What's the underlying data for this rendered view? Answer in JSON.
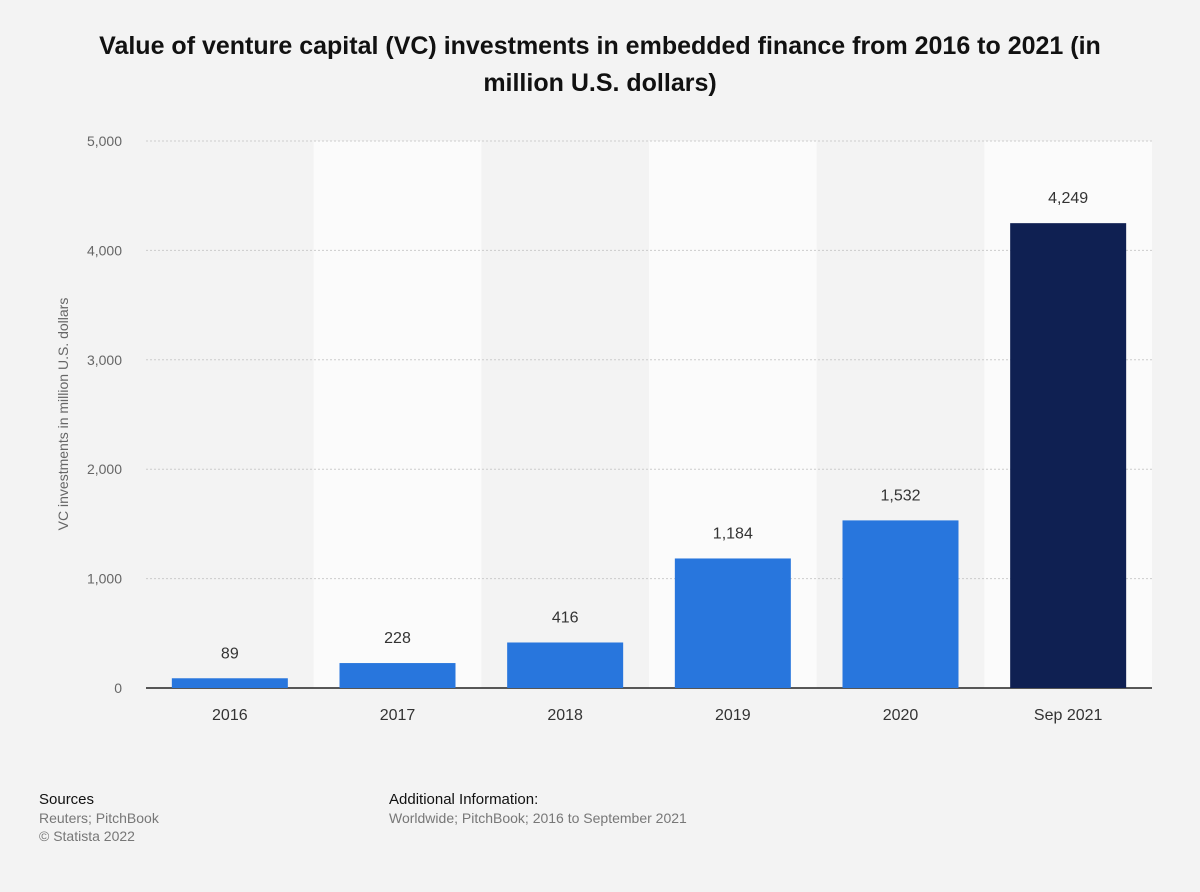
{
  "chart_data": {
    "type": "bar",
    "title": "Value of venture capital (VC) investments in embedded finance from 2016 to 2021 (in million U.S. dollars)",
    "ylabel": "VC investments in million U.S. dollars",
    "xlabel": "",
    "categories": [
      "2016",
      "2017",
      "2018",
      "2019",
      "2020",
      "Sep 2021"
    ],
    "values": [
      89,
      228,
      416,
      1184,
      1532,
      4249
    ],
    "value_labels": [
      "89",
      "228",
      "416",
      "1,184",
      "1,532",
      "4,249"
    ],
    "ylim": [
      0,
      5000
    ],
    "yticks": [
      0,
      1000,
      2000,
      3000,
      4000,
      5000
    ],
    "ytick_labels": [
      "0",
      "1,000",
      "2,000",
      "3,000",
      "4,000",
      "5,000"
    ],
    "grid": true,
    "colors": {
      "bar": "#2876dd",
      "highlight_bar": "#0f2052",
      "grid": "#cccccc",
      "stripe": "#fbfbfb",
      "background": "#f3f3f3"
    },
    "highlight_index": 5
  },
  "footer": {
    "sources_heading": "Sources",
    "sources_line1": "Reuters; PitchBook",
    "sources_line2": "© Statista 2022",
    "info_heading": "Additional Information:",
    "info_line": "Worldwide; PitchBook; 2016 to September 2021"
  }
}
